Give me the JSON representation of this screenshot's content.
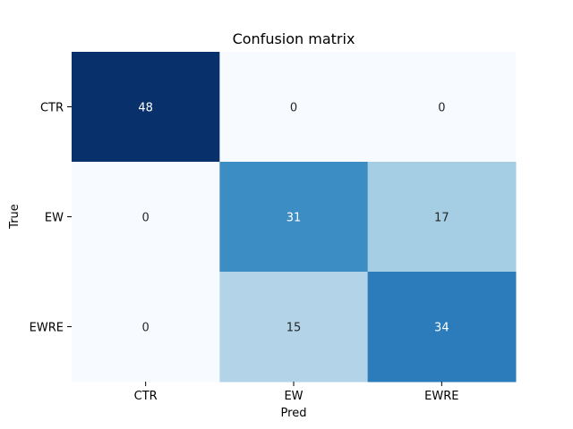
{
  "chart_data": {
    "type": "heatmap",
    "title": "Confusion matrix",
    "xlabel": "Pred",
    "ylabel": "True",
    "x_categories": [
      "CTR",
      "EW",
      "EWRE"
    ],
    "y_categories": [
      "CTR",
      "EW",
      "EWRE"
    ],
    "values": [
      [
        48,
        0,
        0
      ],
      [
        0,
        31,
        17
      ],
      [
        0,
        15,
        34
      ]
    ],
    "colormap": "Blues",
    "vmin": 0,
    "vmax": 48,
    "colorbar": false,
    "grid": false
  }
}
